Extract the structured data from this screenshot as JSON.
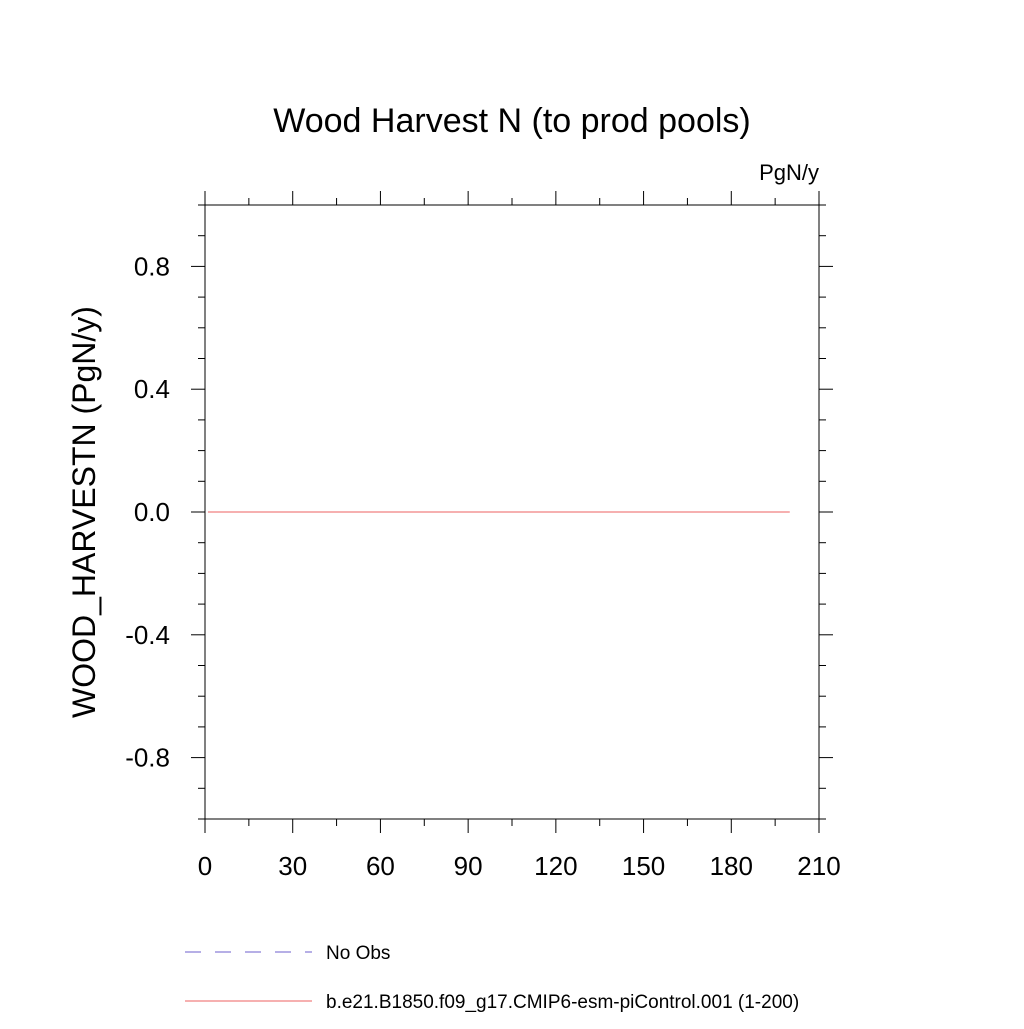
{
  "chart_data": {
    "type": "line",
    "title": "Wood Harvest N (to prod pools)",
    "units": "PgN/y",
    "ylabel": "WOOD_HARVESTN  (PgN/y)",
    "xlabel": "",
    "xlim": [
      0,
      210
    ],
    "ylim": [
      -1.0,
      1.0
    ],
    "x_ticks": [
      0,
      30,
      60,
      90,
      120,
      150,
      180,
      210
    ],
    "x_tick_labels": [
      "0",
      "30",
      "60",
      "90",
      "120",
      "150",
      "180",
      "210"
    ],
    "y_ticks": [
      -0.8,
      -0.4,
      0.0,
      0.4,
      0.8
    ],
    "y_tick_labels": [
      "-0.8",
      "-0.4",
      "0.0",
      "0.4",
      "0.8"
    ],
    "series": [
      {
        "name": "b.e21.B1850.f09_g17.CMIP6-esm-piControl.001 (1-200)",
        "color": "#f08080",
        "dash": "solid",
        "x": [
          1,
          200
        ],
        "y": [
          0.0,
          0.0
        ]
      }
    ],
    "legend": [
      {
        "label": "No Obs",
        "color": "#8a7fd6",
        "dash": "dashed"
      },
      {
        "label": "b.e21.B1850.f09_g17.CMIP6-esm-piControl.001 (1-200)",
        "color": "#f08080",
        "dash": "solid"
      }
    ],
    "legend_position": "bottom",
    "grid": false
  }
}
